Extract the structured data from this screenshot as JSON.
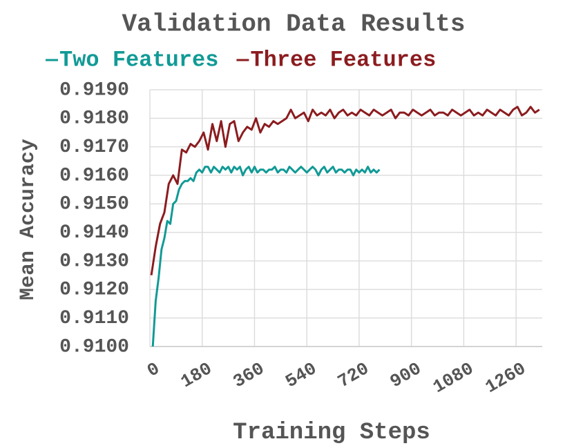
{
  "chart_data": {
    "type": "line",
    "title": "Validation Data Results",
    "x_label": "Training Steps",
    "y_label": "Mean Accuracy",
    "xlim": [
      0,
      1350
    ],
    "ylim": [
      0.91,
      0.919
    ],
    "xticks": [
      0,
      180,
      360,
      540,
      720,
      900,
      1080,
      1260
    ],
    "yticks": [
      {
        "value": 0.91,
        "label": "0.9100"
      },
      {
        "value": 0.911,
        "label": "0.9110"
      },
      {
        "value": 0.912,
        "label": "0.9120"
      },
      {
        "value": 0.913,
        "label": "0.9130"
      },
      {
        "value": 0.914,
        "label": "0.9140"
      },
      {
        "value": 0.915,
        "label": "0.9150"
      },
      {
        "value": 0.916,
        "label": "0.9160"
      },
      {
        "value": 0.917,
        "label": "0.9170"
      },
      {
        "value": 0.918,
        "label": "0.9180"
      },
      {
        "value": 0.919,
        "label": "0.9190"
      }
    ],
    "grid": true,
    "legend": "top",
    "series": [
      {
        "name": "Two Features",
        "color": "#119a96",
        "x": [
          10,
          20,
          30,
          40,
          50,
          60,
          70,
          80,
          90,
          100,
          110,
          120,
          130,
          140,
          150,
          160,
          170,
          180,
          190,
          200,
          210,
          220,
          230,
          240,
          250,
          260,
          270,
          280,
          290,
          300,
          310,
          320,
          330,
          340,
          350,
          360,
          370,
          380,
          390,
          400,
          410,
          420,
          430,
          440,
          450,
          460,
          470,
          480,
          490,
          500,
          510,
          520,
          530,
          540,
          550,
          560,
          570,
          580,
          590,
          600,
          610,
          620,
          630,
          640,
          650,
          660,
          670,
          680,
          690,
          700,
          710,
          720,
          730,
          740,
          750,
          760,
          770,
          780,
          790
        ],
        "values": [
          0.91,
          0.9116,
          0.9124,
          0.9134,
          0.9138,
          0.9144,
          0.9143,
          0.915,
          0.9151,
          0.9155,
          0.9157,
          0.9158,
          0.9158,
          0.9159,
          0.9158,
          0.9161,
          0.9162,
          0.9161,
          0.9163,
          0.9163,
          0.9161,
          0.9163,
          0.9162,
          0.9161,
          0.9163,
          0.9162,
          0.9163,
          0.9161,
          0.9163,
          0.9162,
          0.9163,
          0.916,
          0.9162,
          0.9163,
          0.9161,
          0.9163,
          0.9161,
          0.9162,
          0.9162,
          0.9161,
          0.9162,
          0.9162,
          0.9163,
          0.9161,
          0.9162,
          0.9162,
          0.9161,
          0.9163,
          0.9162,
          0.9161,
          0.9162,
          0.9163,
          0.9162,
          0.9161,
          0.9162,
          0.9163,
          0.9162,
          0.916,
          0.9162,
          0.9163,
          0.9161,
          0.9162,
          0.9163,
          0.9161,
          0.9162,
          0.9162,
          0.9161,
          0.9162,
          0.9162,
          0.916,
          0.9162,
          0.9161,
          0.9162,
          0.9161,
          0.9163,
          0.9161,
          0.9162,
          0.9161,
          0.9162
        ]
      },
      {
        "name": "Three Features",
        "color": "#8b1c1f",
        "x": [
          5,
          20,
          35,
          50,
          65,
          80,
          95,
          110,
          125,
          140,
          155,
          170,
          185,
          200,
          215,
          230,
          245,
          260,
          275,
          290,
          305,
          320,
          335,
          350,
          365,
          380,
          395,
          410,
          425,
          440,
          455,
          470,
          485,
          500,
          515,
          530,
          545,
          560,
          575,
          590,
          605,
          620,
          635,
          650,
          665,
          680,
          695,
          710,
          725,
          740,
          755,
          770,
          785,
          800,
          815,
          830,
          845,
          860,
          875,
          890,
          905,
          920,
          935,
          950,
          965,
          980,
          995,
          1010,
          1025,
          1040,
          1055,
          1070,
          1085,
          1100,
          1115,
          1130,
          1145,
          1160,
          1175,
          1190,
          1205,
          1220,
          1235,
          1250,
          1265,
          1280,
          1295,
          1310,
          1325,
          1340
        ],
        "values": [
          0.9125,
          0.9135,
          0.9143,
          0.9147,
          0.9157,
          0.916,
          0.9157,
          0.9169,
          0.9168,
          0.9171,
          0.917,
          0.9172,
          0.9175,
          0.9169,
          0.9178,
          0.9172,
          0.9179,
          0.917,
          0.9178,
          0.9179,
          0.9172,
          0.9175,
          0.9177,
          0.9176,
          0.918,
          0.9175,
          0.9178,
          0.9177,
          0.9179,
          0.9178,
          0.9179,
          0.918,
          0.9183,
          0.918,
          0.9181,
          0.9182,
          0.9179,
          0.9183,
          0.9181,
          0.9182,
          0.9181,
          0.9183,
          0.918,
          0.9182,
          0.9183,
          0.9181,
          0.9182,
          0.9181,
          0.9183,
          0.9182,
          0.9181,
          0.9183,
          0.9182,
          0.9181,
          0.9182,
          0.9183,
          0.918,
          0.9182,
          0.9182,
          0.9181,
          0.9183,
          0.9182,
          0.9181,
          0.9182,
          0.9183,
          0.9181,
          0.9182,
          0.9182,
          0.9181,
          0.9183,
          0.9182,
          0.9181,
          0.9182,
          0.9183,
          0.9181,
          0.9182,
          0.9181,
          0.9183,
          0.9182,
          0.9181,
          0.9183,
          0.9182,
          0.9181,
          0.9183,
          0.9184,
          0.9181,
          0.9182,
          0.9184,
          0.9182,
          0.9183
        ]
      }
    ]
  }
}
